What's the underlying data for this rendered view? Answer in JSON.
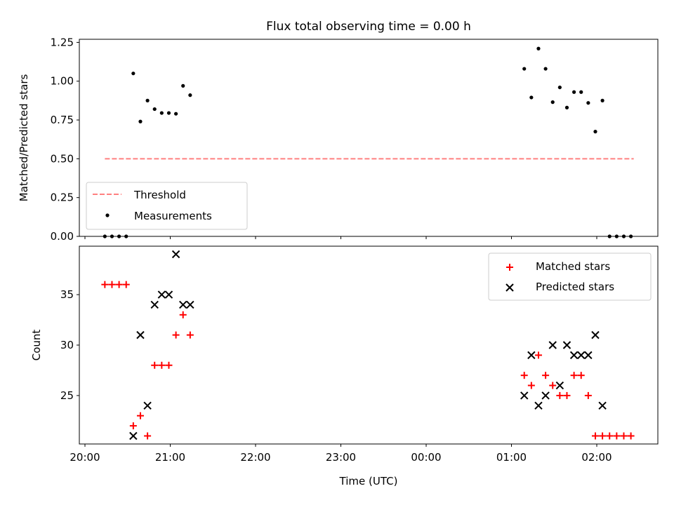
{
  "title": "Flux total observing time = 0.00 h",
  "chart_data": [
    {
      "type": "scatter",
      "ylabel": "Matched/Predicted stars",
      "ylim": [
        0,
        1.27
      ],
      "yticks": [
        "0.00",
        "0.25",
        "0.50",
        "0.75",
        "1.00",
        "1.25"
      ],
      "ytick_values": [
        0,
        0.25,
        0.5,
        0.75,
        1.0,
        1.25
      ],
      "grid": false,
      "legend_position": "bottom-left",
      "series": [
        {
          "name": "Threshold",
          "kind": "dashed-line",
          "color": "#ff8080",
          "x": [
            "20:14",
            "02:26"
          ],
          "y": [
            0.5,
            0.5
          ]
        },
        {
          "name": "Measurements",
          "kind": "points",
          "color": "#000000",
          "x": [
            "20:14",
            "20:19",
            "20:24",
            "20:29",
            "20:34",
            "20:39",
            "20:44",
            "20:49",
            "20:54",
            "20:59",
            "21:04",
            "21:09",
            "21:14",
            "01:09",
            "01:14",
            "01:19",
            "01:24",
            "01:29",
            "01:34",
            "01:39",
            "01:44",
            "01:49",
            "01:54",
            "01:59",
            "02:04",
            "02:09",
            "02:14",
            "02:19",
            "02:24"
          ],
          "y": [
            0,
            0,
            0,
            0,
            1.05,
            0.74,
            0.875,
            0.82,
            0.795,
            0.795,
            0.79,
            0.97,
            0.91,
            1.08,
            0.895,
            1.21,
            1.08,
            0.865,
            0.96,
            0.83,
            0.93,
            0.93,
            0.86,
            0.675,
            0.875,
            0,
            0,
            0,
            0
          ]
        }
      ]
    },
    {
      "type": "scatter",
      "xlabel": "Time (UTC)",
      "ylabel": "Count",
      "ylim": [
        20.2,
        39.8
      ],
      "yticks": [
        "25",
        "30",
        "35"
      ],
      "ytick_values": [
        25,
        30,
        35
      ],
      "xticks": [
        "20:00",
        "21:00",
        "22:00",
        "23:00",
        "00:00",
        "01:00",
        "02:00"
      ],
      "xlim": [
        "19:56",
        "02:43"
      ],
      "grid": false,
      "legend_position": "top-right",
      "series": [
        {
          "name": "Matched stars",
          "marker": "+",
          "color": "#ff0000",
          "x": [
            "20:14",
            "20:19",
            "20:24",
            "20:29",
            "20:34",
            "20:39",
            "20:44",
            "20:49",
            "20:54",
            "20:59",
            "21:04",
            "21:09",
            "21:14",
            "01:09",
            "01:14",
            "01:19",
            "01:24",
            "01:29",
            "01:34",
            "01:39",
            "01:44",
            "01:49",
            "01:54",
            "01:59",
            "02:04",
            "02:09",
            "02:14",
            "02:19",
            "02:24"
          ],
          "y": [
            36,
            36,
            36,
            36,
            22,
            23,
            21,
            28,
            28,
            28,
            31,
            33,
            31,
            27,
            26,
            29,
            27,
            26,
            25,
            25,
            27,
            27,
            25,
            21,
            21,
            21,
            21,
            21,
            21
          ]
        },
        {
          "name": "Predicted stars",
          "marker": "x",
          "color": "#000000",
          "x": [
            "20:34",
            "20:39",
            "20:44",
            "20:49",
            "20:54",
            "20:59",
            "21:04",
            "21:09",
            "21:14",
            "01:09",
            "01:14",
            "01:19",
            "01:24",
            "01:29",
            "01:34",
            "01:39",
            "01:44",
            "01:49",
            "01:54",
            "01:59",
            "02:04"
          ],
          "y": [
            21,
            31,
            24,
            34,
            35,
            35,
            39,
            34,
            34,
            25,
            29,
            24,
            25,
            30,
            26,
            30,
            29,
            29,
            29,
            31,
            24
          ]
        }
      ]
    }
  ]
}
